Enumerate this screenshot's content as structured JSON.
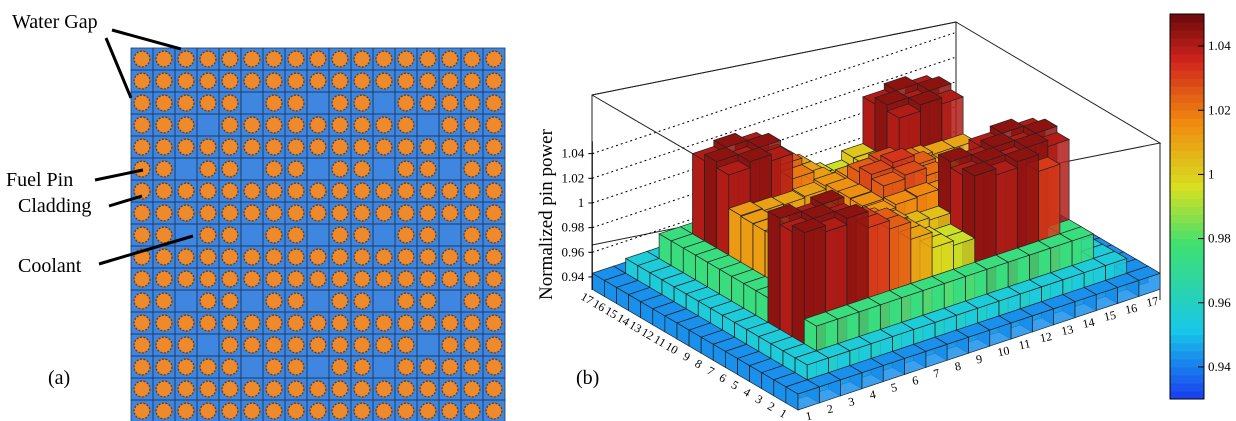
{
  "panel_a": {
    "label": "(a)",
    "callouts": {
      "water_gap": "Water Gap",
      "fuel_pin": "Fuel Pin",
      "cladding": "Cladding",
      "coolant": "Coolant"
    },
    "grid_size": 17,
    "guide_tubes": [
      [
        2,
        5
      ],
      [
        2,
        8
      ],
      [
        2,
        11
      ],
      [
        3,
        3
      ],
      [
        3,
        13
      ],
      [
        5,
        2
      ],
      [
        5,
        5
      ],
      [
        5,
        8
      ],
      [
        5,
        11
      ],
      [
        5,
        14
      ],
      [
        8,
        2
      ],
      [
        8,
        5
      ],
      [
        8,
        8
      ],
      [
        8,
        11
      ],
      [
        8,
        14
      ],
      [
        11,
        2
      ],
      [
        11,
        5
      ],
      [
        11,
        8
      ],
      [
        11,
        11
      ],
      [
        11,
        14
      ],
      [
        13,
        3
      ],
      [
        13,
        13
      ],
      [
        14,
        5
      ],
      [
        14,
        8
      ],
      [
        14,
        11
      ]
    ],
    "colors": {
      "coolant": "#3f86e0",
      "pin": "#ee8a2c",
      "cladding": "#6a3a10",
      "gap": "#1a3a66"
    }
  },
  "panel_b": {
    "label": "(b)",
    "z_title": "Normalized pin power",
    "z_ticks": [
      "0.94",
      "0.96",
      "0.98",
      "1",
      "1.02",
      "1.04"
    ],
    "x_ticks": [
      "1",
      "2",
      "3",
      "4",
      "5",
      "6",
      "7",
      "8",
      "9",
      "10",
      "11",
      "12",
      "13",
      "14",
      "15",
      "16",
      "17"
    ],
    "y_ticks": [
      "1",
      "2",
      "3",
      "4",
      "5",
      "6",
      "7",
      "8",
      "9",
      "10",
      "11",
      "12",
      "13",
      "14",
      "15",
      "16",
      "17"
    ],
    "colorbar_ticks": [
      "0.94",
      "0.96",
      "0.98",
      "1",
      "1.02",
      "1.04"
    ],
    "colorbar_range": [
      0.93,
      1.05
    ]
  },
  "chart_data": {
    "type": "bar3d",
    "x": [
      1,
      2,
      3,
      4,
      5,
      6,
      7,
      8,
      9,
      10,
      11,
      12,
      13,
      14,
      15,
      16,
      17
    ],
    "y": [
      1,
      2,
      3,
      4,
      5,
      6,
      7,
      8,
      9,
      10,
      11,
      12,
      13,
      14,
      15,
      16,
      17
    ],
    "zlabel": "Normalized pin power",
    "zlim": [
      0.93,
      1.05
    ],
    "z_min_observed": 0.932,
    "z_max_observed": 1.048
  }
}
